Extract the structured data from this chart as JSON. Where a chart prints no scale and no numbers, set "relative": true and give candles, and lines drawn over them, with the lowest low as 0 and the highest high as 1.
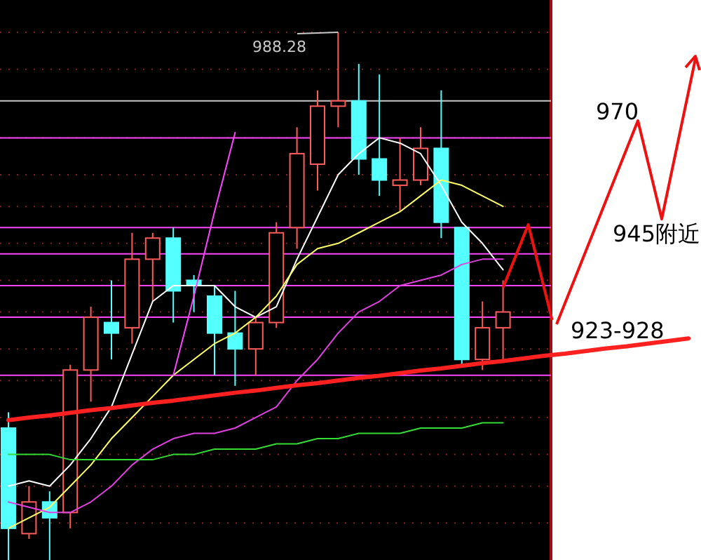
{
  "chart_data": {
    "type": "candlestick",
    "relative": true,
    "categories": [
      null,
      null,
      null,
      null,
      null,
      null,
      null,
      null,
      null,
      null,
      null,
      null,
      null,
      null,
      null,
      null,
      null,
      null,
      null,
      null,
      null,
      null,
      null,
      null,
      null,
      null,
      null,
      null,
      null,
      null,
      null,
      null,
      null,
      null
    ],
    "ohlc": [
      [
        0.25,
        0.28,
        0,
        0.06
      ],
      [
        0.05,
        0.14,
        0.04,
        0.11
      ],
      [
        0.11,
        0.13,
        0,
        0.08
      ],
      [
        0.09,
        0.37,
        0.06,
        0.36
      ],
      [
        0.36,
        0.48,
        0.3,
        0.46
      ],
      [
        0.45,
        0.53,
        0.38,
        0.43
      ],
      [
        0.44,
        0.62,
        0.41,
        0.57
      ],
      [
        0.57,
        0.62,
        0.49,
        0.61
      ],
      [
        0.61,
        0.63,
        0.45,
        0.51
      ],
      [
        0.53,
        0.54,
        0.47,
        0.52
      ],
      [
        0.5,
        0.52,
        0.35,
        0.43
      ],
      [
        0.43,
        0.51,
        0.33,
        0.4
      ],
      [
        0.4,
        0.46,
        0.35,
        0.45
      ],
      [
        0.45,
        0.64,
        0.44,
        0.62
      ],
      [
        0.63,
        0.82,
        0.59,
        0.77
      ],
      [
        0.75,
        0.89,
        0.7,
        0.86
      ],
      [
        0.86,
        1,
        0.82,
        0.87
      ],
      [
        0.87,
        0.94,
        0.73,
        0.76
      ],
      [
        0.76,
        0.92,
        0.69,
        0.72
      ],
      [
        0.71,
        0.8,
        0.66,
        0.72
      ],
      [
        0.72,
        0.82,
        0.71,
        0.78
      ],
      [
        0.78,
        0.89,
        0.61,
        0.64
      ],
      [
        0.63,
        0.63,
        0.37,
        0.38
      ],
      [
        0.38,
        0.49,
        0.36,
        0.44
      ],
      [
        0.44,
        0.53,
        0.38,
        0.47
      ],
      null,
      null,
      null,
      null,
      null,
      null,
      null,
      null,
      null
    ],
    "series": [
      {
        "type": "line",
        "color": "#ffffff",
        "values": [
          0.14,
          0.15,
          0.14,
          0.18,
          0.23,
          0.29,
          0.39,
          0.49,
          0.52,
          0.52,
          0.52,
          0.48,
          0.46,
          0.48,
          0.57,
          0.65,
          0.73,
          0.77,
          0.8,
          0.79,
          0.77,
          0.71,
          0.64,
          0.6,
          0.55,
          null,
          null,
          null,
          null,
          null,
          null,
          null,
          null,
          null
        ]
      },
      {
        "type": "line",
        "color": "#ffff66",
        "values": [
          0.06,
          0.08,
          0.1,
          0.14,
          0.18,
          0.23,
          0.27,
          0.31,
          0.35,
          0.38,
          0.41,
          0.43,
          0.46,
          0.5,
          0.56,
          0.59,
          0.6,
          0.62,
          0.64,
          0.66,
          0.69,
          0.72,
          0.71,
          0.69,
          0.67,
          null,
          null,
          null,
          null,
          null,
          null,
          null,
          null,
          null
        ]
      },
      {
        "type": "line",
        "color": "#e040e0",
        "values": [
          0.11,
          0.1,
          0.09,
          0.09,
          0.11,
          0.14,
          0.18,
          0.21,
          0.23,
          0.24,
          0.24,
          0.25,
          0.27,
          0.29,
          0.34,
          0.38,
          0.43,
          0.47,
          0.49,
          0.52,
          0.53,
          0.54,
          0.56,
          0.57,
          0.57,
          null,
          null,
          null,
          null,
          null,
          null,
          null,
          null,
          null
        ]
      },
      {
        "type": "line",
        "color": "#33dd33",
        "values": [
          0.2,
          0.2,
          0.2,
          0.19,
          0.19,
          0.19,
          0.19,
          0.19,
          0.2,
          0.2,
          0.21,
          0.21,
          0.21,
          0.22,
          0.22,
          0.23,
          0.23,
          0.24,
          0.24,
          0.24,
          0.25,
          0.25,
          0.25,
          0.26,
          0.26,
          null,
          null,
          null,
          null,
          null,
          null,
          null,
          null,
          null
        ]
      },
      {
        "type": "line",
        "color": "#ff44ff",
        "values": [
          null,
          null,
          null,
          null,
          null,
          null,
          null,
          null,
          0.35,
          0.5,
          0.66,
          0.81,
          null,
          null,
          null,
          null,
          null,
          null,
          null,
          null,
          null,
          null,
          null,
          null,
          null,
          null,
          null,
          null,
          null,
          null,
          null,
          null,
          null,
          null
        ]
      },
      {
        "type": "line",
        "color": "#ff2020",
        "values": [
          0.265,
          0.27,
          0.274,
          0.279,
          0.284,
          0.288,
          0.293,
          0.298,
          0.302,
          0.307,
          0.312,
          0.317,
          0.321,
          0.326,
          0.331,
          0.335,
          0.34,
          0.345,
          0.349,
          0.354,
          0.359,
          0.363,
          0.368,
          0.373,
          0.377,
          0.382,
          0.387,
          0.391,
          0.396,
          0.401,
          0.405,
          0.41,
          0.415,
          0.42
        ]
      }
    ],
    "ref_lines": [
      {
        "axis": "y",
        "value": 1,
        "color": "#802020",
        "line_style": "dotted"
      },
      {
        "axis": "y",
        "value": 0.93,
        "color": "#802020",
        "line_style": "dotted"
      },
      {
        "axis": "y",
        "value": 0.8,
        "color": "#802020",
        "line_style": "dotted"
      },
      {
        "axis": "y",
        "value": 0.73,
        "color": "#802020",
        "line_style": "dotted"
      },
      {
        "axis": "y",
        "value": 0.67,
        "color": "#802020",
        "line_style": "dotted"
      },
      {
        "axis": "y",
        "value": 0.6,
        "color": "#802020",
        "line_style": "dotted"
      },
      {
        "axis": "y",
        "value": 0.53,
        "color": "#802020",
        "line_style": "dotted"
      },
      {
        "axis": "y",
        "value": 0.47,
        "color": "#802020",
        "line_style": "dotted"
      },
      {
        "axis": "y",
        "value": 0.4,
        "color": "#802020",
        "line_style": "dotted"
      },
      {
        "axis": "y",
        "value": 0.34,
        "color": "#802020",
        "line_style": "dotted"
      },
      {
        "axis": "y",
        "value": 0.27,
        "color": "#802020",
        "line_style": "dotted"
      },
      {
        "axis": "y",
        "value": 0.2,
        "color": "#802020",
        "line_style": "dotted"
      },
      {
        "axis": "y",
        "value": 0.14,
        "color": "#802020",
        "line_style": "dotted"
      },
      {
        "axis": "y",
        "value": 0.07,
        "color": "#802020",
        "line_style": "dotted"
      },
      {
        "axis": "y",
        "value": 0.87,
        "color": "#c8c8c8"
      },
      {
        "axis": "y",
        "value": 0.8,
        "color": "#ff44ff"
      },
      {
        "axis": "y",
        "value": 0.63,
        "color": "#ff44ff"
      },
      {
        "axis": "y",
        "value": 0.58,
        "color": "#ff44ff"
      },
      {
        "axis": "y",
        "value": 0.52,
        "color": "#ff44ff"
      },
      {
        "axis": "y",
        "value": 0.46,
        "color": "#ff44ff"
      },
      {
        "axis": "y",
        "value": 0.35,
        "color": "#ff44ff"
      }
    ],
    "annotations": [
      "988.28",
      "970",
      "945附近",
      "923-928"
    ]
  }
}
